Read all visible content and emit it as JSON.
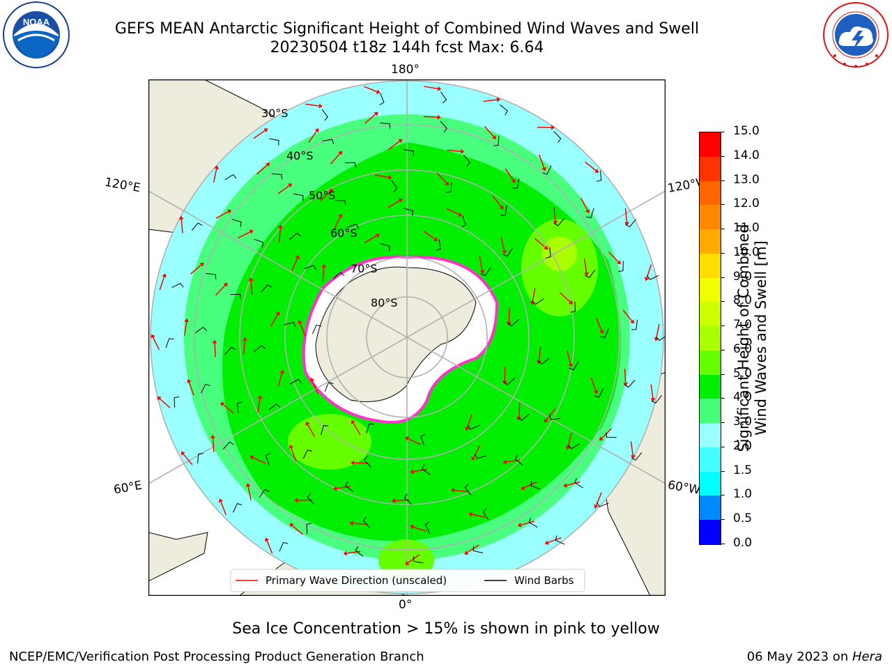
{
  "header": {
    "title_line1": "GEFS MEAN Antarctic Significant Height of Combined Wind Waves and Swell",
    "title_line2": "20230504 t18z 144h fcst   Max: 6.64"
  },
  "logos": {
    "left_text": "NOAA",
    "left_ring_text": "NATIONAL OCEANIC AND ATMOSPHERIC ADMINISTRATION · U.S. DEPARTMENT OF COMMERCE",
    "right_ring_text": "NATIONAL WEATHER SERVICE"
  },
  "map": {
    "projection": "south polar stereographic",
    "lon_labels": {
      "top": "180°",
      "bottom": "0°",
      "left_upper": "120°E",
      "left_lower": "60°E",
      "right_upper": "120°W",
      "right_lower": "60°W"
    },
    "lat_labels": [
      "30°S",
      "40°S",
      "50°S",
      "60°S",
      "70°S",
      "80°S"
    ],
    "legend": {
      "wave": "Primary Wave Direction (unscaled)",
      "barbs": "Wind Barbs"
    },
    "colors": {
      "land": "#eeecdc",
      "ice_edge": "#ff33cc",
      "wave_arrow": "#ff0000",
      "barb": "#000000"
    }
  },
  "colorbar": {
    "label_line1": "Significant Height of Combined",
    "label_line2": "Wind Waves and Swell [m]",
    "ticks": [
      "15.0",
      "14.0",
      "13.0",
      "12.0",
      "11.0",
      "10.0",
      "9.0",
      "8.0",
      "7.0",
      "6.0",
      "5.0",
      "4.0",
      "3.0",
      "2.0",
      "1.5",
      "1.0",
      "0.5",
      "0.0"
    ],
    "colors_top_to_bottom": [
      "#ff0000",
      "#ff3300",
      "#ff6600",
      "#ff8800",
      "#ffaa00",
      "#ffdd00",
      "#eeff00",
      "#ccff00",
      "#aaff00",
      "#66ff00",
      "#00ee00",
      "#44ff77",
      "#99ffff",
      "#44ffff",
      "#00ffff",
      "#0088ff",
      "#0000ff"
    ]
  },
  "notes": {
    "ice": "Sea Ice Concentration > 15% is shown in pink to yellow"
  },
  "footer": {
    "left": "NCEP/EMC/Verification Post Processing Product Generation Branch",
    "right_date": "06 May 2023 on ",
    "right_host": "Hera"
  }
}
